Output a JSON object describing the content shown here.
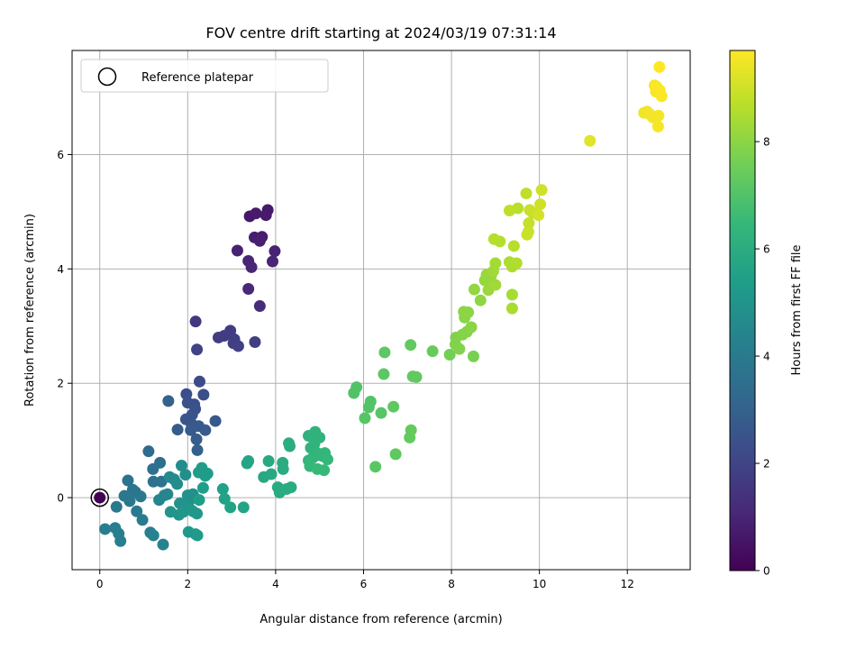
{
  "chart_data": {
    "type": "scatter",
    "title": "FOV centre drift starting at 2024/03/19 07:31:14",
    "xlabel": "Angular distance from reference (arcmin)",
    "ylabel": "Rotation from reference (arcmin)",
    "xlim": [
      -0.63,
      13.43
    ],
    "ylim": [
      -1.26,
      7.82
    ],
    "xticks": [
      0,
      2,
      4,
      6,
      8,
      10,
      12
    ],
    "yticks": [
      0,
      2,
      4,
      6
    ],
    "grid": true,
    "legend": {
      "placement": "top-left",
      "entries": [
        "Reference platepar"
      ]
    },
    "reference_point": {
      "x": 0,
      "y": 0
    },
    "colorbar": {
      "label": "Hours from first FF file",
      "colormap": "viridis",
      "range": [
        0,
        9.7
      ],
      "ticks": [
        0,
        2,
        4,
        6,
        8
      ]
    },
    "points": [
      {
        "x": 0.0,
        "y": 0.0,
        "h": 0.0
      },
      {
        "x": 3.41,
        "y": 4.92,
        "h": 0.6
      },
      {
        "x": 3.55,
        "y": 4.97,
        "h": 0.7
      },
      {
        "x": 3.82,
        "y": 5.03,
        "h": 0.65
      },
      {
        "x": 3.78,
        "y": 4.94,
        "h": 0.7
      },
      {
        "x": 3.52,
        "y": 4.55,
        "h": 0.8
      },
      {
        "x": 3.69,
        "y": 4.56,
        "h": 0.8
      },
      {
        "x": 3.64,
        "y": 4.49,
        "h": 0.85
      },
      {
        "x": 3.13,
        "y": 4.32,
        "h": 0.9
      },
      {
        "x": 3.98,
        "y": 4.31,
        "h": 0.95
      },
      {
        "x": 3.38,
        "y": 4.14,
        "h": 1.0
      },
      {
        "x": 3.93,
        "y": 4.13,
        "h": 1.0
      },
      {
        "x": 3.45,
        "y": 4.03,
        "h": 1.0
      },
      {
        "x": 3.38,
        "y": 3.65,
        "h": 1.1
      },
      {
        "x": 3.64,
        "y": 3.35,
        "h": 1.2
      },
      {
        "x": 2.18,
        "y": 3.08,
        "h": 1.6
      },
      {
        "x": 2.97,
        "y": 2.92,
        "h": 1.7
      },
      {
        "x": 2.83,
        "y": 2.83,
        "h": 1.7
      },
      {
        "x": 2.7,
        "y": 2.8,
        "h": 1.75
      },
      {
        "x": 3.06,
        "y": 2.77,
        "h": 1.8
      },
      {
        "x": 3.04,
        "y": 2.7,
        "h": 1.8
      },
      {
        "x": 3.15,
        "y": 2.65,
        "h": 1.85
      },
      {
        "x": 3.53,
        "y": 2.72,
        "h": 1.8
      },
      {
        "x": 2.21,
        "y": 2.59,
        "h": 1.9
      },
      {
        "x": 2.27,
        "y": 2.03,
        "h": 2.2
      },
      {
        "x": 1.97,
        "y": 1.81,
        "h": 2.3
      },
      {
        "x": 2.36,
        "y": 1.8,
        "h": 2.3
      },
      {
        "x": 2.0,
        "y": 1.66,
        "h": 2.4
      },
      {
        "x": 2.15,
        "y": 1.63,
        "h": 2.4
      },
      {
        "x": 2.17,
        "y": 1.55,
        "h": 2.45
      },
      {
        "x": 2.1,
        "y": 1.45,
        "h": 2.5
      },
      {
        "x": 1.96,
        "y": 1.37,
        "h": 2.55
      },
      {
        "x": 2.08,
        "y": 1.3,
        "h": 2.6
      },
      {
        "x": 2.63,
        "y": 1.34,
        "h": 2.65
      },
      {
        "x": 2.25,
        "y": 1.25,
        "h": 2.7
      },
      {
        "x": 2.07,
        "y": 1.18,
        "h": 2.75
      },
      {
        "x": 2.4,
        "y": 1.18,
        "h": 2.75
      },
      {
        "x": 1.77,
        "y": 1.19,
        "h": 2.8
      },
      {
        "x": 2.2,
        "y": 1.02,
        "h": 2.85
      },
      {
        "x": 2.22,
        "y": 0.83,
        "h": 2.9
      },
      {
        "x": 1.56,
        "y": 1.69,
        "h": 3.0
      },
      {
        "x": 1.11,
        "y": 0.81,
        "h": 3.4
      },
      {
        "x": 1.37,
        "y": 0.61,
        "h": 3.5
      },
      {
        "x": 1.21,
        "y": 0.5,
        "h": 3.55
      },
      {
        "x": 1.22,
        "y": 0.28,
        "h": 3.6
      },
      {
        "x": 1.4,
        "y": 0.28,
        "h": 3.65
      },
      {
        "x": 0.64,
        "y": 0.3,
        "h": 3.7
      },
      {
        "x": 0.75,
        "y": 0.14,
        "h": 3.75
      },
      {
        "x": 0.81,
        "y": 0.1,
        "h": 3.8
      },
      {
        "x": 0.56,
        "y": 0.03,
        "h": 3.85
      },
      {
        "x": 0.93,
        "y": 0.02,
        "h": 3.9
      },
      {
        "x": 0.68,
        "y": -0.06,
        "h": 3.9
      },
      {
        "x": 0.38,
        "y": -0.16,
        "h": 3.95
      },
      {
        "x": 0.84,
        "y": -0.24,
        "h": 4.0
      },
      {
        "x": 0.97,
        "y": -0.39,
        "h": 4.05
      },
      {
        "x": 0.12,
        "y": -0.55,
        "h": 4.1
      },
      {
        "x": 0.35,
        "y": -0.53,
        "h": 4.1
      },
      {
        "x": 0.43,
        "y": -0.63,
        "h": 4.15
      },
      {
        "x": 0.47,
        "y": -0.76,
        "h": 4.2
      },
      {
        "x": 1.15,
        "y": -0.61,
        "h": 4.2
      },
      {
        "x": 1.22,
        "y": -0.66,
        "h": 4.25
      },
      {
        "x": 1.44,
        "y": -0.82,
        "h": 4.3
      },
      {
        "x": 1.35,
        "y": -0.04,
        "h": 4.4
      },
      {
        "x": 1.47,
        "y": 0.04,
        "h": 4.45
      },
      {
        "x": 1.54,
        "y": 0.06,
        "h": 4.5
      },
      {
        "x": 1.59,
        "y": 0.36,
        "h": 4.6
      },
      {
        "x": 1.69,
        "y": 0.32,
        "h": 4.65
      },
      {
        "x": 1.76,
        "y": 0.24,
        "h": 4.7
      },
      {
        "x": 1.86,
        "y": 0.56,
        "h": 4.75
      },
      {
        "x": 1.95,
        "y": 0.4,
        "h": 4.8
      },
      {
        "x": 2.0,
        "y": 0.04,
        "h": 4.85
      },
      {
        "x": 2.06,
        "y": -0.03,
        "h": 4.9
      },
      {
        "x": 2.12,
        "y": 0.06,
        "h": 4.9
      },
      {
        "x": 1.82,
        "y": -0.1,
        "h": 4.95
      },
      {
        "x": 1.94,
        "y": -0.15,
        "h": 5.0
      },
      {
        "x": 1.61,
        "y": -0.25,
        "h": 5.0
      },
      {
        "x": 1.8,
        "y": -0.3,
        "h": 5.05
      },
      {
        "x": 1.9,
        "y": -0.25,
        "h": 5.1
      },
      {
        "x": 2.05,
        "y": -0.2,
        "h": 5.1
      },
      {
        "x": 2.12,
        "y": -0.24,
        "h": 5.15
      },
      {
        "x": 2.21,
        "y": -0.28,
        "h": 5.15
      },
      {
        "x": 2.02,
        "y": -0.6,
        "h": 5.2
      },
      {
        "x": 2.18,
        "y": -0.64,
        "h": 5.2
      },
      {
        "x": 2.22,
        "y": -0.66,
        "h": 5.25
      },
      {
        "x": 2.25,
        "y": 0.44,
        "h": 5.3
      },
      {
        "x": 2.32,
        "y": 0.52,
        "h": 5.3
      },
      {
        "x": 2.4,
        "y": 0.38,
        "h": 5.35
      },
      {
        "x": 2.45,
        "y": 0.42,
        "h": 5.35
      },
      {
        "x": 2.35,
        "y": 0.17,
        "h": 5.4
      },
      {
        "x": 2.26,
        "y": -0.04,
        "h": 5.4
      },
      {
        "x": 2.8,
        "y": 0.15,
        "h": 5.5
      },
      {
        "x": 2.84,
        "y": -0.02,
        "h": 5.55
      },
      {
        "x": 2.97,
        "y": -0.17,
        "h": 5.6
      },
      {
        "x": 3.27,
        "y": -0.17,
        "h": 5.65
      },
      {
        "x": 3.35,
        "y": 0.6,
        "h": 5.7
      },
      {
        "x": 3.38,
        "y": 0.64,
        "h": 5.7
      },
      {
        "x": 3.73,
        "y": 0.36,
        "h": 5.8
      },
      {
        "x": 3.84,
        "y": 0.64,
        "h": 5.85
      },
      {
        "x": 3.9,
        "y": 0.41,
        "h": 5.85
      },
      {
        "x": 4.05,
        "y": 0.18,
        "h": 5.9
      },
      {
        "x": 4.09,
        "y": 0.09,
        "h": 5.9
      },
      {
        "x": 4.16,
        "y": 0.61,
        "h": 5.95
      },
      {
        "x": 4.17,
        "y": 0.5,
        "h": 5.95
      },
      {
        "x": 4.25,
        "y": 0.15,
        "h": 6.0
      },
      {
        "x": 4.35,
        "y": 0.18,
        "h": 6.0
      },
      {
        "x": 4.3,
        "y": 0.95,
        "h": 6.05
      },
      {
        "x": 4.32,
        "y": 0.9,
        "h": 6.05
      },
      {
        "x": 4.75,
        "y": 1.08,
        "h": 6.2
      },
      {
        "x": 4.9,
        "y": 1.15,
        "h": 6.25
      },
      {
        "x": 5.0,
        "y": 1.05,
        "h": 6.25
      },
      {
        "x": 4.88,
        "y": 0.94,
        "h": 6.3
      },
      {
        "x": 4.8,
        "y": 0.87,
        "h": 6.3
      },
      {
        "x": 4.95,
        "y": 0.78,
        "h": 6.35
      },
      {
        "x": 4.85,
        "y": 0.7,
        "h": 6.35
      },
      {
        "x": 4.75,
        "y": 0.65,
        "h": 6.4
      },
      {
        "x": 5.05,
        "y": 0.73,
        "h": 6.4
      },
      {
        "x": 5.12,
        "y": 0.78,
        "h": 6.4
      },
      {
        "x": 5.18,
        "y": 0.67,
        "h": 6.45
      },
      {
        "x": 4.78,
        "y": 0.55,
        "h": 6.45
      },
      {
        "x": 4.95,
        "y": 0.5,
        "h": 6.5
      },
      {
        "x": 5.1,
        "y": 0.48,
        "h": 6.5
      },
      {
        "x": 5.78,
        "y": 1.83,
        "h": 7.0
      },
      {
        "x": 5.84,
        "y": 1.93,
        "h": 7.0
      },
      {
        "x": 6.16,
        "y": 1.68,
        "h": 7.05
      },
      {
        "x": 6.12,
        "y": 1.58,
        "h": 7.05
      },
      {
        "x": 6.03,
        "y": 1.39,
        "h": 7.1
      },
      {
        "x": 6.4,
        "y": 1.48,
        "h": 7.1
      },
      {
        "x": 6.27,
        "y": 0.54,
        "h": 7.15
      },
      {
        "x": 6.48,
        "y": 2.54,
        "h": 7.2
      },
      {
        "x": 6.46,
        "y": 2.16,
        "h": 7.2
      },
      {
        "x": 6.68,
        "y": 1.59,
        "h": 7.25
      },
      {
        "x": 6.73,
        "y": 0.76,
        "h": 7.25
      },
      {
        "x": 7.07,
        "y": 2.67,
        "h": 7.3
      },
      {
        "x": 7.12,
        "y": 2.12,
        "h": 7.3
      },
      {
        "x": 7.2,
        "y": 2.11,
        "h": 7.3
      },
      {
        "x": 7.08,
        "y": 1.18,
        "h": 7.35
      },
      {
        "x": 7.05,
        "y": 1.05,
        "h": 7.35
      },
      {
        "x": 7.57,
        "y": 2.56,
        "h": 7.4
      },
      {
        "x": 7.96,
        "y": 2.5,
        "h": 7.6
      },
      {
        "x": 8.5,
        "y": 2.47,
        "h": 7.7
      },
      {
        "x": 8.1,
        "y": 2.8,
        "h": 7.8
      },
      {
        "x": 8.09,
        "y": 2.68,
        "h": 7.85
      },
      {
        "x": 8.18,
        "y": 2.6,
        "h": 7.85
      },
      {
        "x": 8.25,
        "y": 2.85,
        "h": 7.9
      },
      {
        "x": 8.35,
        "y": 2.9,
        "h": 7.9
      },
      {
        "x": 8.45,
        "y": 2.98,
        "h": 7.95
      },
      {
        "x": 8.3,
        "y": 3.15,
        "h": 7.95
      },
      {
        "x": 8.28,
        "y": 3.25,
        "h": 8.0
      },
      {
        "x": 8.38,
        "y": 3.24,
        "h": 8.0
      },
      {
        "x": 8.66,
        "y": 3.45,
        "h": 8.05
      },
      {
        "x": 8.52,
        "y": 3.64,
        "h": 8.1
      },
      {
        "x": 8.76,
        "y": 3.8,
        "h": 8.15
      },
      {
        "x": 8.8,
        "y": 3.9,
        "h": 8.2
      },
      {
        "x": 8.9,
        "y": 3.88,
        "h": 8.2
      },
      {
        "x": 8.84,
        "y": 3.63,
        "h": 8.25
      },
      {
        "x": 9.0,
        "y": 3.72,
        "h": 8.3
      },
      {
        "x": 8.95,
        "y": 3.96,
        "h": 8.3
      },
      {
        "x": 9.0,
        "y": 4.1,
        "h": 8.35
      },
      {
        "x": 9.38,
        "y": 3.55,
        "h": 8.4
      },
      {
        "x": 9.38,
        "y": 3.31,
        "h": 8.45
      },
      {
        "x": 9.38,
        "y": 4.04,
        "h": 8.5
      },
      {
        "x": 9.32,
        "y": 4.12,
        "h": 8.5
      },
      {
        "x": 9.48,
        "y": 4.1,
        "h": 8.55
      },
      {
        "x": 8.97,
        "y": 4.52,
        "h": 8.6
      },
      {
        "x": 9.1,
        "y": 4.48,
        "h": 8.6
      },
      {
        "x": 9.42,
        "y": 4.4,
        "h": 8.65
      },
      {
        "x": 9.51,
        "y": 5.06,
        "h": 8.7
      },
      {
        "x": 9.32,
        "y": 5.02,
        "h": 8.75
      },
      {
        "x": 9.7,
        "y": 5.32,
        "h": 8.8
      },
      {
        "x": 9.76,
        "y": 4.8,
        "h": 8.85
      },
      {
        "x": 9.85,
        "y": 4.98,
        "h": 8.85
      },
      {
        "x": 9.78,
        "y": 5.03,
        "h": 8.9
      },
      {
        "x": 9.75,
        "y": 4.65,
        "h": 8.9
      },
      {
        "x": 9.72,
        "y": 4.6,
        "h": 8.95
      },
      {
        "x": 10.02,
        "y": 5.13,
        "h": 9.0
      },
      {
        "x": 10.05,
        "y": 5.38,
        "h": 9.0
      },
      {
        "x": 9.98,
        "y": 4.94,
        "h": 9.05
      },
      {
        "x": 11.15,
        "y": 6.24,
        "h": 9.3
      },
      {
        "x": 12.45,
        "y": 6.75,
        "h": 9.5
      },
      {
        "x": 12.38,
        "y": 6.73,
        "h": 9.5
      },
      {
        "x": 12.52,
        "y": 6.7,
        "h": 9.55
      },
      {
        "x": 12.58,
        "y": 6.65,
        "h": 9.55
      },
      {
        "x": 12.71,
        "y": 6.68,
        "h": 9.55
      },
      {
        "x": 12.7,
        "y": 6.49,
        "h": 9.6
      },
      {
        "x": 12.62,
        "y": 7.21,
        "h": 9.6
      },
      {
        "x": 12.65,
        "y": 7.1,
        "h": 9.6
      },
      {
        "x": 12.74,
        "y": 7.12,
        "h": 9.65
      },
      {
        "x": 12.78,
        "y": 7.02,
        "h": 9.65
      },
      {
        "x": 12.66,
        "y": 7.19,
        "h": 9.65
      },
      {
        "x": 12.73,
        "y": 7.53,
        "h": 9.7
      }
    ]
  }
}
